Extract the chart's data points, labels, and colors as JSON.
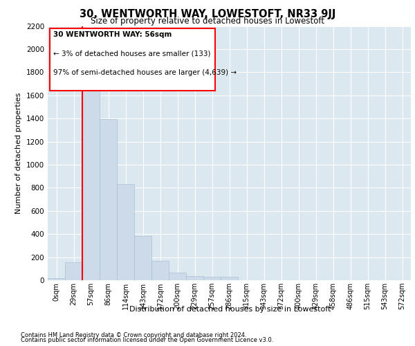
{
  "title": "30, WENTWORTH WAY, LOWESTOFT, NR33 9JJ",
  "subtitle": "Size of property relative to detached houses in Lowestoft",
  "xlabel": "Distribution of detached houses by size in Lowestoft",
  "ylabel": "Number of detached properties",
  "bar_color": "#ccdaea",
  "bar_edge_color": "#a8c0d4",
  "plot_bg_color": "#dce8f0",
  "categories": [
    "0sqm",
    "29sqm",
    "57sqm",
    "86sqm",
    "114sqm",
    "143sqm",
    "172sqm",
    "200sqm",
    "229sqm",
    "257sqm",
    "286sqm",
    "315sqm",
    "343sqm",
    "372sqm",
    "400sqm",
    "429sqm",
    "458sqm",
    "486sqm",
    "515sqm",
    "543sqm",
    "572sqm"
  ],
  "values": [
    18,
    155,
    1720,
    1395,
    830,
    385,
    165,
    65,
    38,
    30,
    30,
    0,
    0,
    0,
    0,
    0,
    0,
    0,
    0,
    0,
    0
  ],
  "ylim": [
    0,
    2200
  ],
  "yticks": [
    0,
    200,
    400,
    600,
    800,
    1000,
    1200,
    1400,
    1600,
    1800,
    2000,
    2200
  ],
  "marker_label_line1": "30 WENTWORTH WAY: 56sqm",
  "marker_label_line2": "← 3% of detached houses are smaller (133)",
  "marker_label_line3": "97% of semi-detached houses are larger (4,639) →",
  "footer_line1": "Contains HM Land Registry data © Crown copyright and database right 2024.",
  "footer_line2": "Contains public sector information licensed under the Open Government Licence v3.0."
}
